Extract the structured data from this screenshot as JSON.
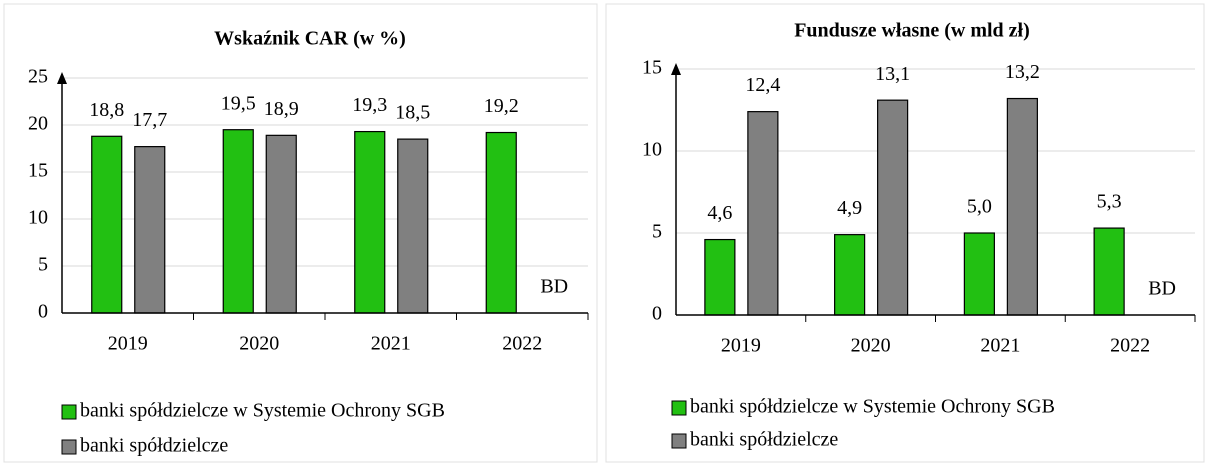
{
  "chart_data": [
    {
      "type": "bar",
      "title": "Wskaźnik CAR (w %)",
      "categories": [
        "2019",
        "2020",
        "2021",
        "2022"
      ],
      "series": [
        {
          "name": "banki spółdzielcze w Systemie Ochrony SGB",
          "color": "#22c012",
          "values": [
            18.8,
            19.5,
            19.3,
            19.2
          ],
          "value_labels": [
            "18,8",
            "19,5",
            "19,3",
            "19,2"
          ]
        },
        {
          "name": "banki spółdzielcze",
          "color": "#808080",
          "values": [
            17.7,
            18.9,
            18.5,
            null
          ],
          "value_labels": [
            "17,7",
            "18,9",
            "18,5",
            null
          ]
        }
      ],
      "missing_label": "BD",
      "ylim": [
        0,
        25
      ],
      "yticks": [
        0,
        5,
        10,
        15,
        20,
        25
      ],
      "grid": true,
      "legend": "bottom"
    },
    {
      "type": "bar",
      "title": "Fundusze własne (w mld zł)",
      "categories": [
        "2019",
        "2020",
        "2021",
        "2022"
      ],
      "series": [
        {
          "name": "banki spółdzielcze w Systemie Ochrony SGB",
          "color": "#22c012",
          "values": [
            4.6,
            4.9,
            5.0,
            5.3
          ],
          "value_labels": [
            "4,6",
            "4,9",
            "5,0",
            "5,3"
          ]
        },
        {
          "name": "banki spółdzielcze",
          "color": "#808080",
          "values": [
            12.4,
            13.1,
            13.2,
            null
          ],
          "value_labels": [
            "12,4",
            "13,1",
            "13,2",
            null
          ]
        }
      ],
      "missing_label": "BD",
      "ylim": [
        0,
        15
      ],
      "yticks": [
        0,
        5,
        10,
        15
      ],
      "grid": true,
      "legend": "bottom"
    }
  ]
}
